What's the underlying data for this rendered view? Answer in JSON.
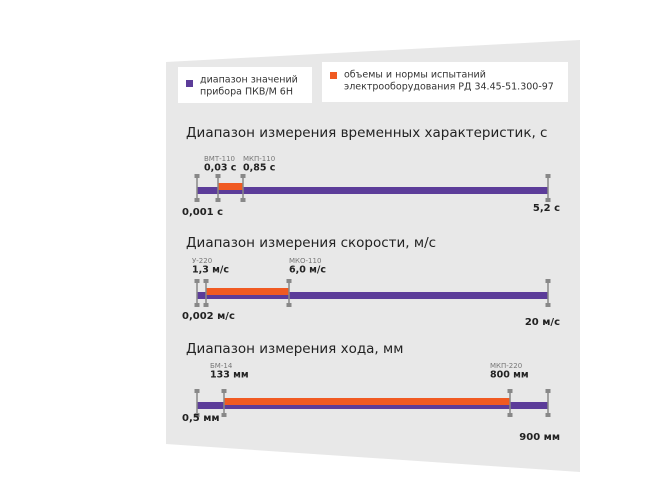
{
  "legend": [
    {
      "label": [
        "диапазон значений",
        "прибора ПКВ/М 6Н"
      ]
    },
    {
      "label": [
        "объемы и нормы испытаний",
        "электрооборудования РД 34.45-51.300-97"
      ]
    }
  ],
  "sections": [
    {
      "title": "Диапазон измерения временных характеристик, с",
      "start": "0,001 с",
      "end": "5,2 с",
      "markers": [
        {
          "name": "ВМТ-110",
          "value": "0,03 с"
        },
        {
          "name": "МКП-110",
          "value": "0,85 с"
        }
      ]
    },
    {
      "title": "Диапазон измерения скорости, м/с",
      "start": "0,002 м/с",
      "end": "20 м/с",
      "markers": [
        {
          "name": "У-220",
          "value": "1,3 м/с"
        },
        {
          "name": "МКО-110",
          "value": "6,0 м/с"
        }
      ]
    },
    {
      "title": "Диапазон измерения хода, мм",
      "start": "0,5 мм",
      "end": "900 мм",
      "markers": [
        {
          "name": "БМ-14",
          "value": "133 мм"
        },
        {
          "name": "МКП-220",
          "value": "800 мм"
        }
      ]
    }
  ]
}
